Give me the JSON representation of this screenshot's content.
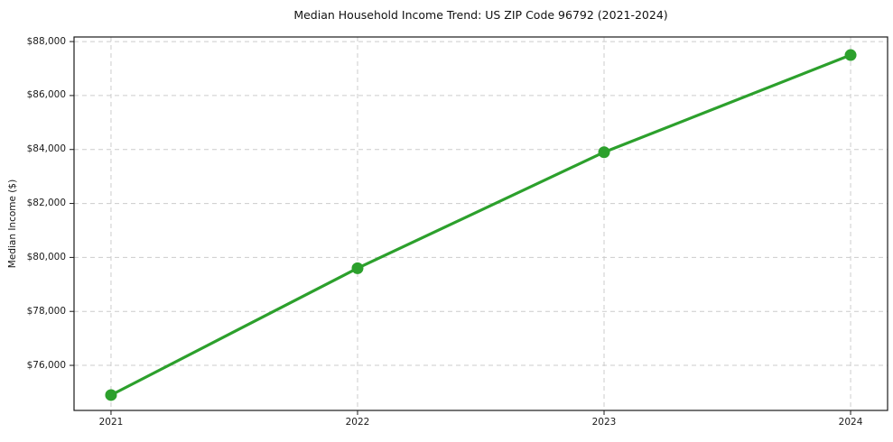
{
  "chart_data": {
    "type": "line",
    "title": "Median Household Income Trend: US ZIP Code 96792 (2021-2024)",
    "xlabel": "",
    "ylabel": "Median Income ($)",
    "x": [
      2021,
      2022,
      2023,
      2024
    ],
    "x_tick_labels": [
      "2021",
      "2022",
      "2023",
      "2024"
    ],
    "series": [
      {
        "name": "Median Household Income",
        "values": [
          74900,
          79600,
          83900,
          87500
        ]
      }
    ],
    "y_ticks": [
      {
        "value": 76000,
        "label": "$76,000"
      },
      {
        "value": 78000,
        "label": "$78,000"
      },
      {
        "value": 80000,
        "label": "$80,000"
      },
      {
        "value": 82000,
        "label": "$82,000"
      },
      {
        "value": 84000,
        "label": "$84,000"
      },
      {
        "value": 86000,
        "label": "$86,000"
      },
      {
        "value": 88000,
        "label": "$88,000"
      }
    ],
    "xlim": [
      2020.85,
      2024.15
    ],
    "ylim": [
      74330,
      88170
    ],
    "grid": "both-dashed",
    "legend": "none",
    "colors": {
      "line": "#2ca02c",
      "marker": "#2ca02c",
      "grid": "#cccccc",
      "frame": "#1a1a1a",
      "text": "#1a1a1a",
      "background": "#ffffff"
    },
    "marker": "circle",
    "marker_radius": 6.5,
    "line_width": 3.2
  }
}
